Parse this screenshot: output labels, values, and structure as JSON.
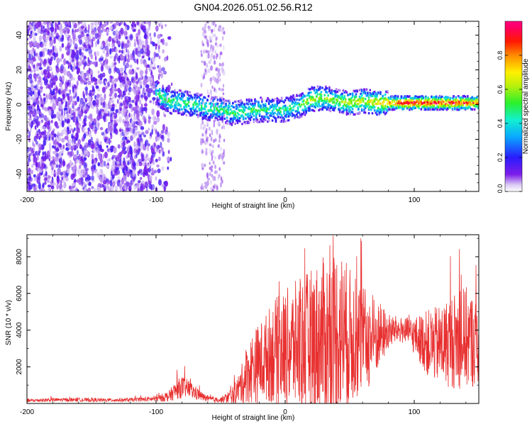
{
  "title": "GN04.2026.051.02.56.R12",
  "colors": {
    "snr_line": "#e83030",
    "frame": "#000000",
    "background": "#ffffff"
  },
  "chart_data": [
    {
      "type": "heatmap",
      "title": "GN04.2026.051.02.56.R12",
      "xlabel": "Height of straight line (km)",
      "ylabel": "Frequency (Hz)",
      "xlim": [
        -200,
        150
      ],
      "ylim": [
        -50,
        48
      ],
      "xticks": [
        -200,
        -100,
        0,
        100
      ],
      "xtick_labels": [
        "-200",
        "-100",
        "0",
        "100"
      ],
      "yticks": [
        -40,
        -20,
        0,
        20,
        40
      ],
      "ytick_labels": [
        "-40",
        "-20",
        "0",
        "20",
        "40"
      ],
      "colorbar": {
        "label": "Normalized spectral amplitude",
        "range": [
          0,
          1
        ],
        "ticks": [
          0,
          0.2,
          0.4,
          0.6,
          0.8
        ],
        "tick_labels": [
          "0.0",
          "0.2",
          "0.4",
          "0.6",
          "0.8"
        ],
        "colormap": "rainbow (purple → blue → cyan → green → yellow → red → magenta)"
      },
      "noise_region_km": [
        -200,
        -92
      ],
      "sparse_noise_band_km": [
        -65,
        -47
      ],
      "ridge": {
        "x": [
          -100,
          -95,
          -90,
          -80,
          -70,
          -60,
          -50,
          -40,
          -30,
          -20,
          -10,
          0,
          10,
          20,
          30,
          40,
          50,
          60,
          70,
          80,
          90,
          100,
          110,
          120,
          130,
          140,
          150
        ],
        "frequency_hz": [
          7,
          4,
          2,
          1,
          0,
          -2,
          -3,
          -5,
          -4,
          -3,
          -3,
          -3,
          -1,
          3,
          4,
          2,
          1,
          2,
          1,
          1,
          1,
          1,
          1,
          1,
          1,
          1,
          1
        ],
        "amplitude": [
          0.45,
          0.5,
          0.5,
          0.5,
          0.5,
          0.5,
          0.5,
          0.5,
          0.5,
          0.5,
          0.45,
          0.5,
          0.5,
          0.65,
          0.6,
          0.6,
          0.65,
          0.65,
          0.7,
          0.8,
          0.95,
          0.95,
          0.95,
          0.95,
          0.95,
          0.9,
          0.8
        ]
      }
    },
    {
      "type": "line",
      "xlabel": "Height of straight line (km)",
      "ylabel": "SNR (10 * v/v)",
      "xlim": [
        -200,
        150
      ],
      "ylim": [
        0,
        9200
      ],
      "xticks": [
        -200,
        -100,
        0,
        100
      ],
      "xtick_labels": [
        "-200",
        "-100",
        "0",
        "100"
      ],
      "yticks": [
        2000,
        4000,
        6000,
        8000
      ],
      "ytick_labels": [
        "2000",
        "4000",
        "6000",
        "8000"
      ],
      "series": [
        {
          "name": "SNR",
          "x": [
            -200,
            -180,
            -160,
            -140,
            -120,
            -100,
            -90,
            -85,
            -80,
            -75,
            -70,
            -65,
            -60,
            -55,
            -50,
            -45,
            -40,
            -35,
            -30,
            -25,
            -20,
            -15,
            -10,
            -5,
            0,
            5,
            10,
            15,
            20,
            25,
            30,
            35,
            40,
            45,
            50,
            55,
            60,
            65,
            70,
            75,
            80,
            85,
            90,
            95,
            100,
            105,
            110,
            115,
            120,
            125,
            130,
            135,
            140,
            145,
            150
          ],
          "mean": [
            150,
            200,
            200,
            180,
            200,
            250,
            400,
            700,
            900,
            800,
            600,
            400,
            250,
            200,
            200,
            300,
            500,
            900,
            1500,
            2000,
            2200,
            2500,
            2800,
            2900,
            3000,
            3100,
            3200,
            3200,
            3400,
            3500,
            3600,
            3700,
            3900,
            3800,
            3600,
            3500,
            3500,
            3400,
            3600,
            3800,
            3900,
            4000,
            4000,
            3900,
            3700,
            3500,
            3300,
            3200,
            3200,
            3300,
            3400,
            3500,
            3600,
            3400,
            3200
          ],
          "spread": [
            100,
            100,
            100,
            100,
            100,
            150,
            300,
            500,
            600,
            500,
            400,
            250,
            150,
            150,
            150,
            300,
            500,
            900,
            1500,
            2000,
            2200,
            2400,
            2800,
            3000,
            3200,
            3400,
            3600,
            3800,
            4000,
            4200,
            4400,
            4600,
            4800,
            4400,
            3800,
            3400,
            3000,
            2600,
            2200,
            1600,
            1000,
            800,
            700,
            800,
            1000,
            1400,
            1800,
            2000,
            2200,
            2400,
            2600,
            2800,
            2800,
            2600,
            2200
          ]
        }
      ]
    }
  ]
}
